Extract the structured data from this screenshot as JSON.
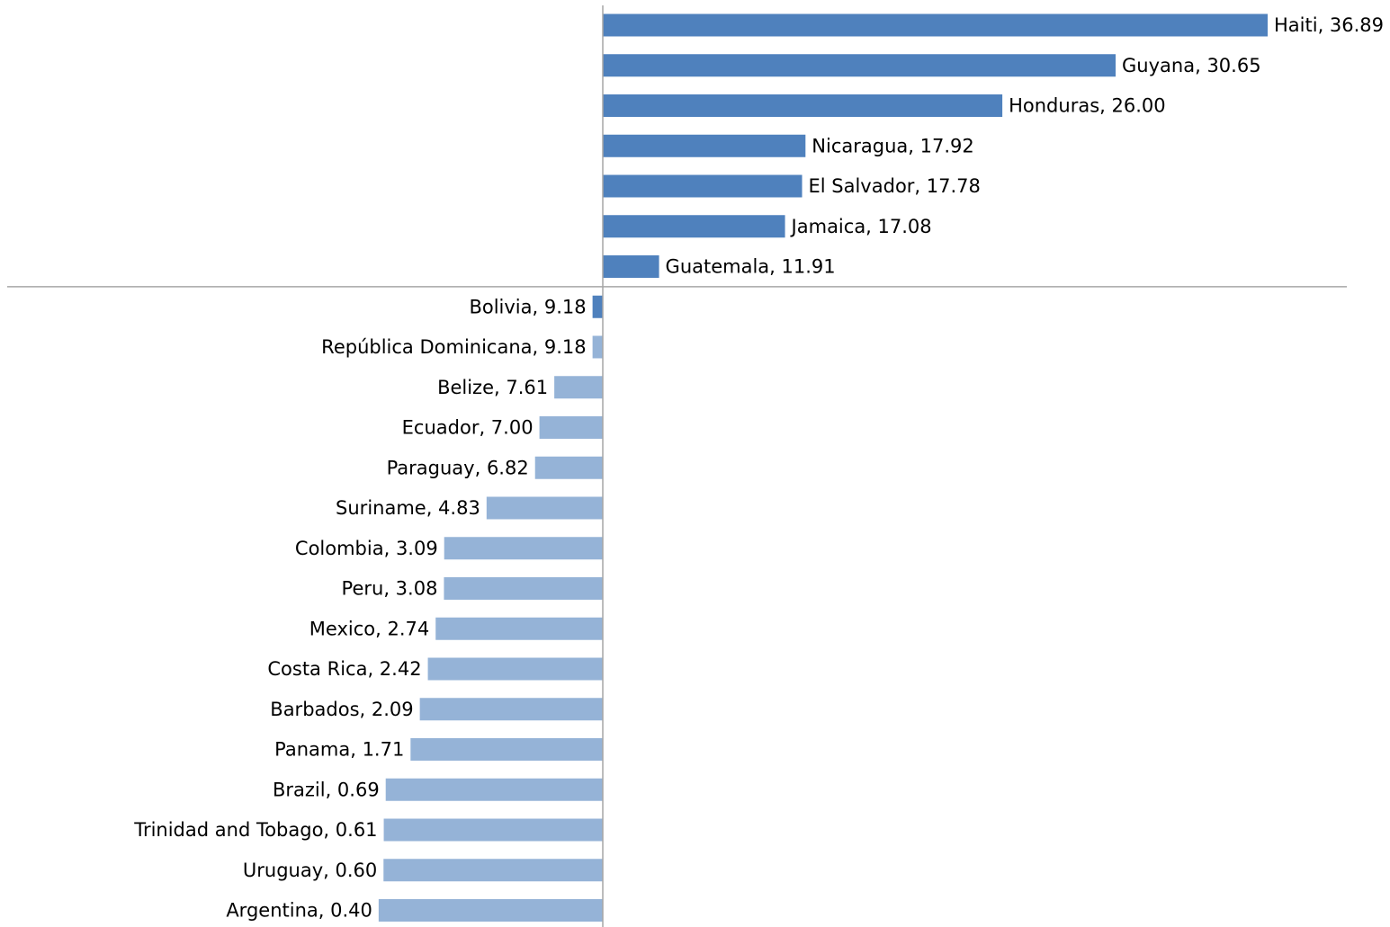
{
  "chart_data": {
    "type": "bar",
    "orientation": "horizontal",
    "title": "",
    "xlabel": "",
    "ylabel": "",
    "grid": false,
    "legend": "none",
    "colors": {
      "above": "#4f81bd",
      "below": "#95b3d7",
      "axis": "#a6a6a6"
    },
    "categories": [
      "Haiti",
      "Guyana",
      "Honduras",
      "Nicaragua",
      "El Salvador",
      "Jamaica",
      "Guatemala",
      "Bolivia",
      "República Dominicana",
      "Belize",
      "Ecuador",
      "Paraguay",
      "Suriname",
      "Colombia",
      "Peru",
      "Mexico",
      "Costa Rica",
      "Barbados",
      "Panama",
      "Brazil",
      "Trinidad and Tobago",
      "Uruguay",
      "Argentina"
    ],
    "values": [
      36.89,
      30.65,
      26.0,
      17.92,
      17.78,
      17.08,
      11.91,
      9.18,
      9.18,
      7.61,
      7.0,
      6.82,
      4.83,
      3.09,
      3.08,
      2.74,
      2.42,
      2.09,
      1.71,
      0.69,
      0.61,
      0.6,
      0.4
    ],
    "labels": [
      "Haiti, 36.89",
      "Guyana, 30.65",
      "Honduras, 26.00",
      "Nicaragua, 17.92",
      "El Salvador, 17.78",
      "Jamaica, 17.08",
      "Guatemala, 11.91",
      "Bolivia, 9.18",
      "República Dominicana, 9.18",
      "Belize, 7.61",
      "Ecuador, 7.00",
      "Paraguay, 6.82",
      "Suriname, 4.83",
      "Colombia, 3.09",
      "Peru, 3.08",
      "Mexico, 2.74",
      "Costa Rica, 2.42",
      "Barbados, 2.09",
      "Panama, 1.71",
      "Brazil, 0.69",
      "Trinidad and Tobago, 0.61",
      "Uruguay, 0.60",
      "Argentina, 0.40"
    ],
    "reference_value": 9.6
  }
}
